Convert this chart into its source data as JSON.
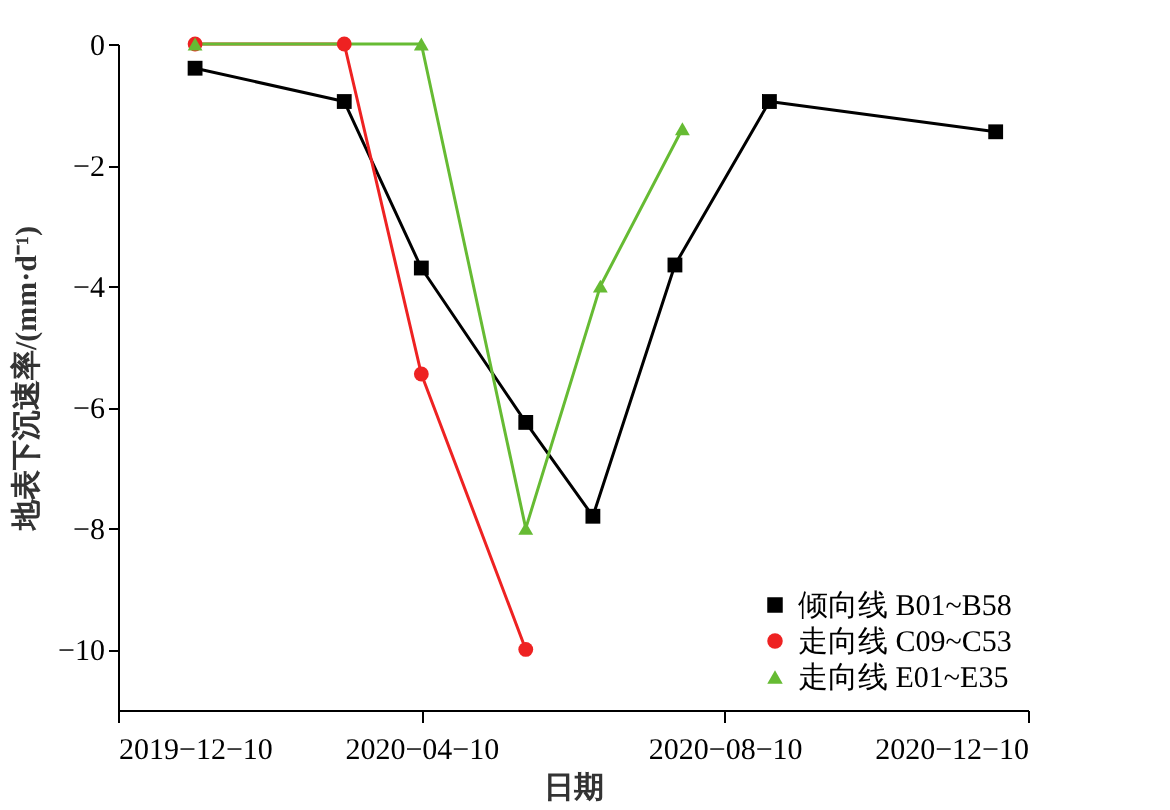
{
  "chart_data": {
    "type": "line",
    "xlabel": "日期",
    "ylabel": "地表下沉速率/(mm·d⁻¹)",
    "xlim": [
      "2019-12-10",
      "2020-12-10"
    ],
    "xticks": [
      {
        "value": "2019-12-10",
        "label": "2019−12−10"
      },
      {
        "value": "2020-04-10",
        "label": "2020−04−10"
      },
      {
        "value": "2020-08-10",
        "label": "2020−08−10"
      },
      {
        "value": "2020-12-10",
        "label": "2020−12−10"
      }
    ],
    "ylim": [
      -11,
      0
    ],
    "yticks": [
      {
        "value": 0,
        "label": "0"
      },
      {
        "value": -2,
        "label": "−2"
      },
      {
        "value": -4,
        "label": "−4"
      },
      {
        "value": -6,
        "label": "−6"
      },
      {
        "value": -8,
        "label": "−8"
      },
      {
        "value": -10,
        "label": "−10"
      }
    ],
    "grid": false,
    "legend": "bottom right",
    "line_style": "solid",
    "series": [
      {
        "name": "倾向线 B01~B58",
        "color": "#000000",
        "marker": "square",
        "x": [
          "2020-01-10",
          "2020-03-10",
          "2020-04-10",
          "2020-05-22",
          "2020-06-18",
          "2020-07-21",
          "2020-08-28",
          "2020-11-27"
        ],
        "values": [
          -0.4,
          -0.95,
          -3.7,
          -6.25,
          -7.8,
          -3.65,
          -0.95,
          -1.45
        ]
      },
      {
        "name": "走向线 C09~C53",
        "color": "#ee2222",
        "marker": "circle",
        "x": [
          "2020-01-10",
          "2020-03-10",
          "2020-04-10",
          "2020-05-22"
        ],
        "values": [
          0,
          0,
          -5.45,
          -10
        ]
      },
      {
        "name": "走向线 E01~E35",
        "color": "#66bb33",
        "marker": "triangle",
        "x": [
          "2020-01-10",
          "2020-04-10",
          "2020-05-22",
          "2020-06-21",
          "2020-07-24"
        ],
        "values": [
          0,
          0,
          -8,
          -4,
          -1.4
        ]
      }
    ]
  }
}
